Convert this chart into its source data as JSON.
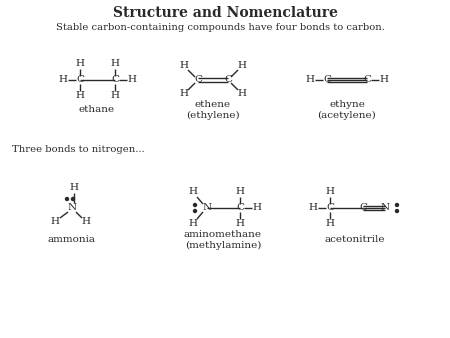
{
  "title": "Structure and Nomenclature",
  "subtitle": "Stable carbon-containing compounds have four bonds to carbon.",
  "nitrogen_label": "Three bonds to nitrogen...",
  "bg_color": "#ffffff",
  "text_color": "#2a2a2a",
  "molecules": {
    "ethane": "ethane",
    "ethene": "ethene\n(ethylene)",
    "ethyne": "ethyne\n(acetylene)",
    "ammonia": "ammonia",
    "aminomethane": "aminomethane\n(methylamine)",
    "acetonitrile": "acetonitrile"
  }
}
